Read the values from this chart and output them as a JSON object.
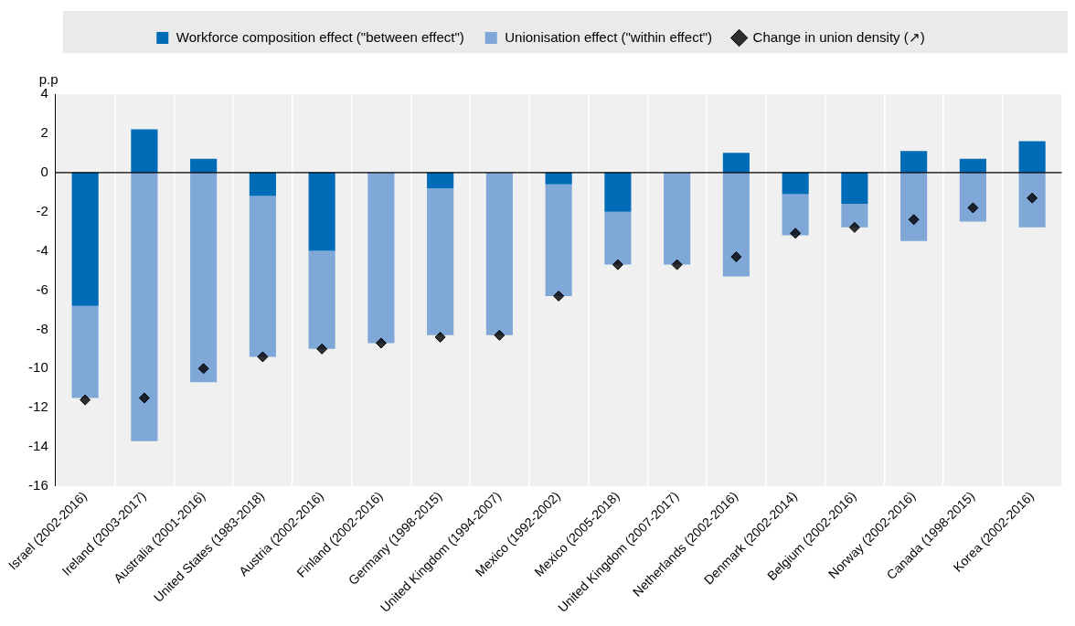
{
  "chart_data": {
    "type": "bar",
    "stacked": true,
    "ylabel": "p.p",
    "categories": [
      "Israel (2002-2016)",
      "Ireland (2003-2017)",
      "Australia (2001-2016)",
      "United States (1983-2018)",
      "Austria (2002-2016)",
      "Finland (2002-2016)",
      "Germany (1998-2015)",
      "United Kingdom (1994-2007)",
      "Mexico (1992-2002)",
      "Mexico (2005-2018)",
      "United Kingdom (2007-2017)",
      "Netherlands (2002-2016)",
      "Denmark (2002-2014)",
      "Belgium (2002-2016)",
      "Norway (2002-2016)",
      "Canada (1998-2015)",
      "Korea (2002-2016)"
    ],
    "series": [
      {
        "name": "Workforce composition effect (\"between effect\")",
        "color": "#006bb6",
        "values": [
          -6.8,
          2.2,
          0.7,
          -1.2,
          -4.0,
          0,
          -0.8,
          0,
          -0.6,
          -2.0,
          0,
          1.0,
          -1.1,
          -1.6,
          1.1,
          0.7,
          1.6
        ]
      },
      {
        "name": "Unionisation effect (\"within effect\")",
        "color": "#7fa8d9",
        "values": [
          -4.7,
          -13.7,
          -10.7,
          -8.2,
          -5.0,
          -8.7,
          -7.5,
          -8.3,
          -5.7,
          -2.7,
          -4.7,
          -5.3,
          -2.1,
          -1.2,
          -3.5,
          -2.5,
          -2.8
        ]
      },
      {
        "name": "Change in union density (↗)",
        "type": "scatter",
        "marker": "diamond",
        "color": "#000000",
        "x": [
          "Israel (2002-2016)",
          "Ireland (2003-2017)",
          "Australia (2001-2016)",
          "United States (1983-2018)",
          "Austria (2002-2016)",
          "Finland (2002-2016)",
          "Germany (1998-2015)",
          "United Kingdom (1994-2007)",
          "Mexico (1992-2002)",
          "Mexico (2005-2018)",
          "United Kingdom (2007-2017)",
          "Netherlands (2002-2016)",
          "Denmark (2002-2014)",
          "Belgium (2002-2016)",
          "Norway (2002-2016)",
          "Canada (1998-2015)",
          "Korea (2002-2016)"
        ],
        "values": [
          -11.6,
          -11.5,
          -10.0,
          -9.4,
          -9.0,
          -8.7,
          -8.4,
          -8.3,
          -6.3,
          -4.7,
          -4.7,
          -4.3,
          -3.1,
          -2.8,
          -2.4,
          -1.8,
          -1.3
        ]
      }
    ],
    "ylim": [
      -16,
      4
    ],
    "yticks": [
      -16,
      -14,
      -12,
      -10,
      -8,
      -6,
      -4,
      -2,
      0,
      2,
      4
    ],
    "grid": "x",
    "legend": "top",
    "ref_lines": [
      {
        "axis": "y",
        "value": 0,
        "color": "#000000"
      }
    ]
  }
}
